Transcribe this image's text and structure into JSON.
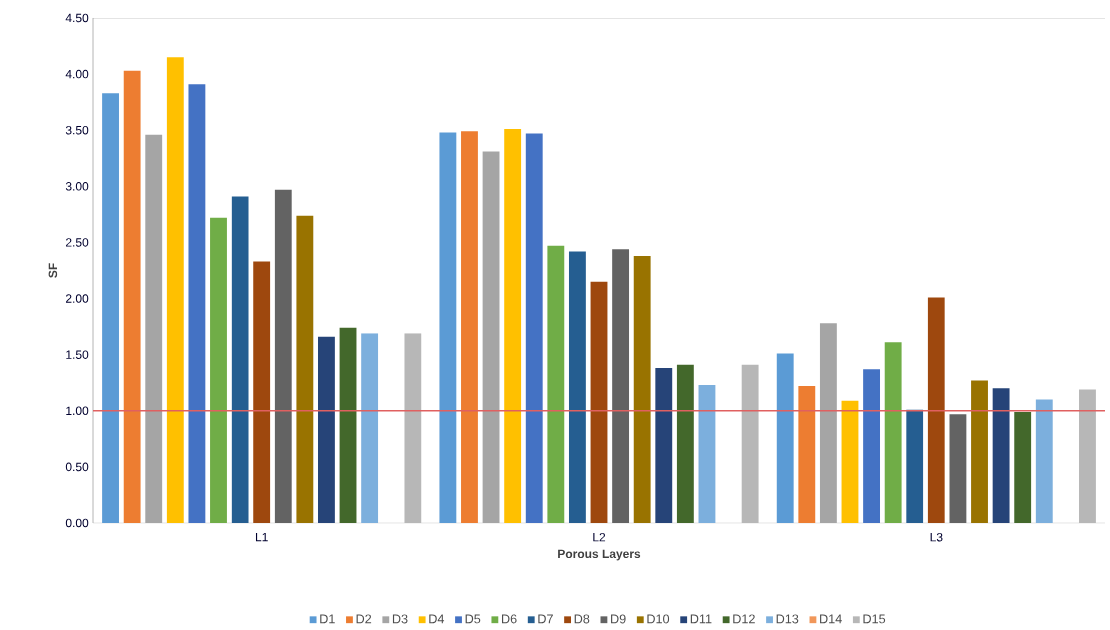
{
  "chart_data": {
    "type": "bar",
    "xlabel": "Porous Layers",
    "ylabel": "SF",
    "categories": [
      "L1",
      "L2",
      "L3"
    ],
    "series": [
      {
        "name": "D1",
        "color": "#5b9bd5",
        "values": [
          3.83,
          3.48,
          1.51
        ]
      },
      {
        "name": "D2",
        "color": "#ed7d31",
        "values": [
          4.03,
          3.49,
          1.22
        ]
      },
      {
        "name": "D3",
        "color": "#a5a5a5",
        "values": [
          3.46,
          3.31,
          1.78
        ]
      },
      {
        "name": "D4",
        "color": "#ffc000",
        "values": [
          4.15,
          3.51,
          1.09
        ]
      },
      {
        "name": "D5",
        "color": "#4472c4",
        "values": [
          3.91,
          3.47,
          1.37
        ]
      },
      {
        "name": "D6",
        "color": "#70ad47",
        "values": [
          2.72,
          2.47,
          1.61
        ]
      },
      {
        "name": "D7",
        "color": "#255e91",
        "values": [
          2.91,
          2.42,
          1.01
        ]
      },
      {
        "name": "D8",
        "color": "#9e480e",
        "values": [
          2.33,
          2.15,
          2.01
        ]
      },
      {
        "name": "D9",
        "color": "#636363",
        "values": [
          2.97,
          2.44,
          0.97
        ]
      },
      {
        "name": "D10",
        "color": "#997300",
        "values": [
          2.74,
          2.38,
          1.27
        ]
      },
      {
        "name": "D11",
        "color": "#264478",
        "values": [
          1.66,
          1.38,
          1.2
        ]
      },
      {
        "name": "D12",
        "color": "#43682b",
        "values": [
          1.74,
          1.41,
          0.99
        ]
      },
      {
        "name": "D13",
        "color": "#7cafdd",
        "values": [
          1.69,
          1.23,
          1.1
        ]
      },
      {
        "name": "D14",
        "color": "#f1975a",
        "values": [
          null,
          null,
          null
        ]
      },
      {
        "name": "D15",
        "color": "#b7b7b7",
        "values": [
          1.69,
          1.41,
          1.19
        ]
      }
    ],
    "ylim": [
      0,
      4.5
    ],
    "yticks": [
      {
        "value": 0,
        "label": "0.00"
      },
      {
        "value": 0.5,
        "label": "0.50"
      },
      {
        "value": 1,
        "label": "1.00"
      },
      {
        "value": 1.5,
        "label": "1.50"
      },
      {
        "value": 2,
        "label": "2.00"
      },
      {
        "value": 2.5,
        "label": "2.50"
      },
      {
        "value": 3,
        "label": "3.00"
      },
      {
        "value": 3.5,
        "label": "3.50"
      },
      {
        "value": 4,
        "label": "4.00"
      },
      {
        "value": 4.5,
        "label": "4.50"
      }
    ],
    "ref_lines": [
      {
        "axis": "y",
        "value": 1,
        "color": "#e06060"
      }
    ],
    "grid": false,
    "legend": "bottom"
  }
}
